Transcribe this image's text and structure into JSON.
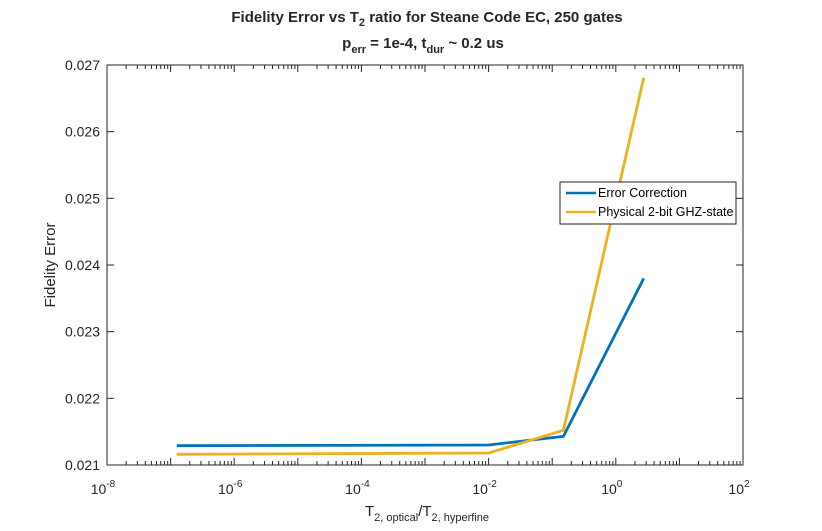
{
  "chart_data": {
    "type": "line",
    "title": {
      "line1_before": "Fidelity Error vs T",
      "line1_sub": "2",
      "line1_after": " ratio for Steane Code EC, 250 gates",
      "line2_p": "p",
      "line2_p_sub": "err",
      "line2_mid": " = 1e-4, t",
      "line2_t_sub": "dur",
      "line2_after": " ~ 0.2 us"
    },
    "xlabel": {
      "t1": "T",
      "sub1": "2, optical",
      "slash": "/T",
      "sub2": "2, hyperfine"
    },
    "ylabel": "Fidelity Error",
    "x_scale": "log",
    "xlim": [
      1e-08,
      100
    ],
    "ylim": [
      0.021,
      0.027
    ],
    "x_ticks": [
      {
        "base": "10",
        "exp": "-8",
        "value": 1e-08
      },
      {
        "base": "10",
        "exp": "-6",
        "value": 1e-06
      },
      {
        "base": "10",
        "exp": "-4",
        "value": 0.0001
      },
      {
        "base": "10",
        "exp": "-2",
        "value": 0.01
      },
      {
        "base": "10",
        "exp": "0",
        "value": 1
      },
      {
        "base": "10",
        "exp": "2",
        "value": 100
      }
    ],
    "y_ticks": [
      "0.021",
      "0.022",
      "0.023",
      "0.024",
      "0.025",
      "0.026",
      "0.027"
    ],
    "grid": false,
    "legend_position": "right",
    "series": [
      {
        "name": "Error Correction",
        "color": "#0072BD",
        "x": [
          1.25e-07,
          0.01,
          0.15,
          2.75
        ],
        "y": [
          0.02129,
          0.0213,
          0.02143,
          0.0238
        ]
      },
      {
        "name": "Physical 2-bit GHZ-state",
        "color": "#EDB120",
        "x": [
          1.25e-07,
          0.01,
          0.15,
          2.75
        ],
        "y": [
          0.02116,
          0.02118,
          0.02152,
          0.02681
        ]
      }
    ]
  }
}
